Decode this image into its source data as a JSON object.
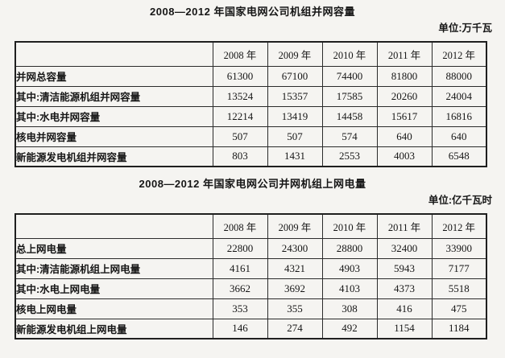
{
  "page": {
    "background_color": "#f5f4f1",
    "text_color": "#161616",
    "border_color": "#2b2b2b"
  },
  "tables": [
    {
      "title": "2008—2012 年国家电网公司机组并网容量",
      "unit_label": "单位:万千瓦",
      "year_headers": [
        "2008 年",
        "2009 年",
        "2010 年",
        "2011 年",
        "2012 年"
      ],
      "rows": [
        {
          "label": "并网总容量",
          "indent": 0,
          "values": [
            "61300",
            "67100",
            "74400",
            "81800",
            "88000"
          ]
        },
        {
          "label": "其中:清洁能源机组并网容量",
          "indent": 0,
          "values": [
            "13524",
            "15357",
            "17585",
            "20260",
            "24004"
          ]
        },
        {
          "label": "其中:水电并网容量",
          "indent": 1,
          "values": [
            "12214",
            "13419",
            "14458",
            "15617",
            "16816"
          ]
        },
        {
          "label": "核电并网容量",
          "indent": 2,
          "values": [
            "507",
            "507",
            "574",
            "640",
            "640"
          ]
        },
        {
          "label": "新能源发电机组并网容量",
          "indent": 3,
          "values": [
            "803",
            "1431",
            "2553",
            "4003",
            "6548"
          ]
        }
      ]
    },
    {
      "title": "2008—2012 年国家电网公司并网机组上网电量",
      "unit_label": "单位:亿千瓦时",
      "year_headers": [
        "2008 年",
        "2009 年",
        "2010 年",
        "2011 年",
        "2012 年"
      ],
      "rows": [
        {
          "label": "总上网电量",
          "indent": 0,
          "values": [
            "22800",
            "24300",
            "28800",
            "32400",
            "33900"
          ]
        },
        {
          "label": "其中:清洁能源机组上网电量",
          "indent": 0,
          "values": [
            "4161",
            "4321",
            "4903",
            "5943",
            "7177"
          ]
        },
        {
          "label": "其中:水电上网电量",
          "indent": 1,
          "values": [
            "3662",
            "3692",
            "4103",
            "4373",
            "5518"
          ]
        },
        {
          "label": "核电上网电量",
          "indent": 2,
          "values": [
            "353",
            "355",
            "308",
            "416",
            "475"
          ]
        },
        {
          "label": "新能源发电机组上网电量",
          "indent": 3,
          "values": [
            "146",
            "274",
            "492",
            "1154",
            "1184"
          ]
        }
      ]
    }
  ]
}
